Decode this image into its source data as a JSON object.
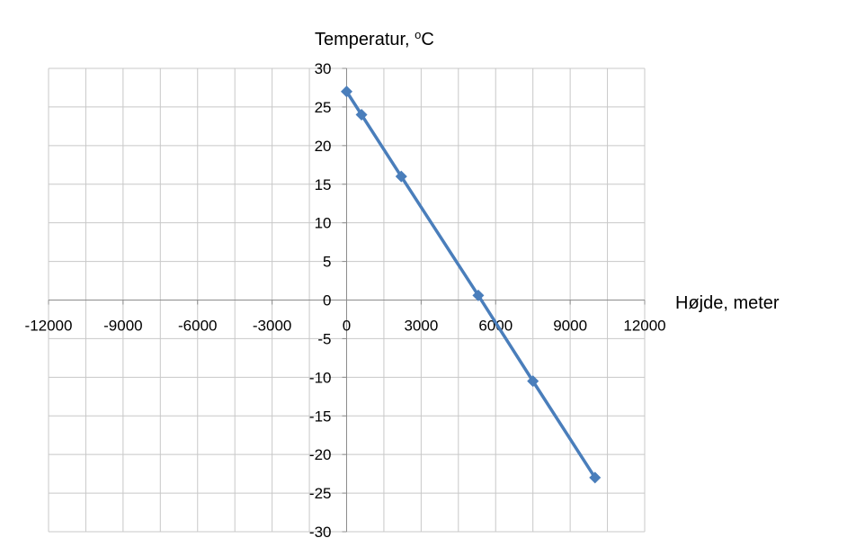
{
  "chart_data": {
    "type": "scatter",
    "title": "",
    "xlabel": "Højde, meter",
    "ylabel": "Temperatur, °C",
    "xlim": [
      -12000,
      12000
    ],
    "ylim": [
      -30,
      30
    ],
    "x_major_step": 3000,
    "x_minor_step": 1500,
    "y_step": 5,
    "x_tick_labels": [
      "-12000",
      "-9000",
      "-6000",
      "-3000",
      "0",
      "3000",
      "6000",
      "9000",
      "12000"
    ],
    "y_tick_labels": [
      "30",
      "25",
      "20",
      "15",
      "10",
      "5",
      "0",
      "-5",
      "-10",
      "-15",
      "-20",
      "-25",
      "-30"
    ],
    "grid": true,
    "legend": "none",
    "series": [
      {
        "x": [
          0,
          600,
          2200,
          5300,
          7500,
          10000
        ],
        "y": [
          27,
          24,
          16,
          0.6,
          -10.5,
          -23
        ],
        "color": "#4a7ebb",
        "marker": "diamond"
      }
    ]
  }
}
